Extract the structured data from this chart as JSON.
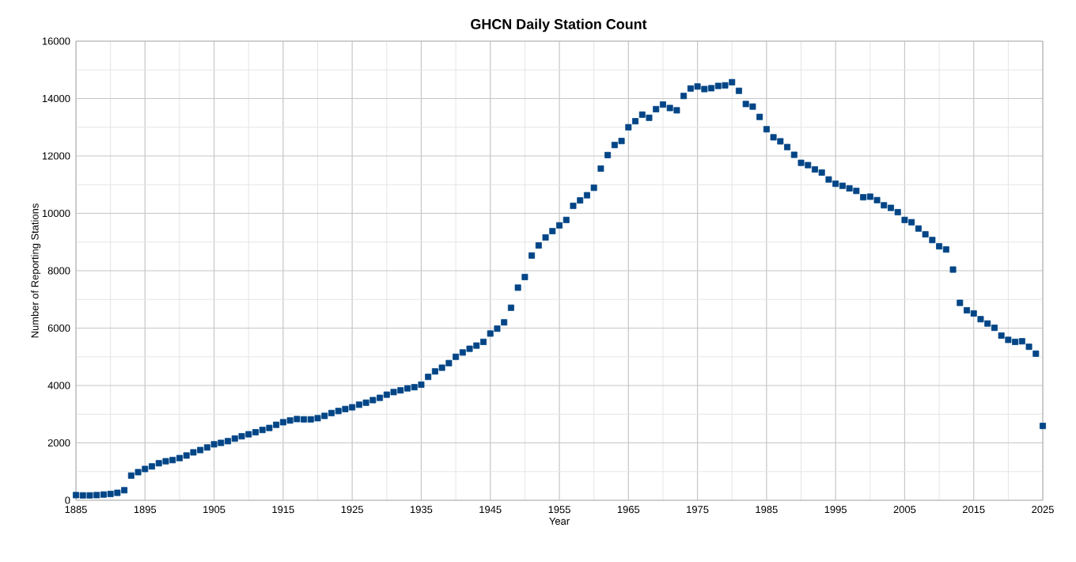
{
  "chart_data": {
    "type": "scatter",
    "title": "GHCN Daily Station Count",
    "xlabel": "Year",
    "ylabel": "Number of Reporting Stations",
    "x": [
      1885,
      1886,
      1887,
      1888,
      1889,
      1890,
      1891,
      1892,
      1893,
      1894,
      1895,
      1896,
      1897,
      1898,
      1899,
      1900,
      1901,
      1902,
      1903,
      1904,
      1905,
      1906,
      1907,
      1908,
      1909,
      1910,
      1911,
      1912,
      1913,
      1914,
      1915,
      1916,
      1917,
      1918,
      1919,
      1920,
      1921,
      1922,
      1923,
      1924,
      1925,
      1926,
      1927,
      1928,
      1929,
      1930,
      1931,
      1932,
      1933,
      1934,
      1935,
      1936,
      1937,
      1938,
      1939,
      1940,
      1941,
      1942,
      1943,
      1944,
      1945,
      1946,
      1947,
      1948,
      1949,
      1950,
      1951,
      1952,
      1953,
      1954,
      1955,
      1956,
      1957,
      1958,
      1959,
      1960,
      1961,
      1962,
      1963,
      1964,
      1965,
      1966,
      1967,
      1968,
      1969,
      1970,
      1971,
      1972,
      1973,
      1974,
      1975,
      1976,
      1977,
      1978,
      1979,
      1980,
      1981,
      1982,
      1983,
      1984,
      1985,
      1986,
      1987,
      1988,
      1989,
      1990,
      1991,
      1992,
      1993,
      1994,
      1995,
      1996,
      1997,
      1998,
      1999,
      2000,
      2001,
      2002,
      2003,
      2004,
      2005,
      2006,
      2007,
      2008,
      2009,
      2010,
      2011,
      2012,
      2013,
      2014,
      2015,
      2016,
      2017,
      2018,
      2019,
      2020,
      2021,
      2022,
      2023,
      2024,
      2025
    ],
    "series": [
      {
        "color": "#004586",
        "values": [
          180,
          170,
          170,
          180,
          200,
          220,
          260,
          350,
          860,
          980,
          1090,
          1180,
          1290,
          1360,
          1400,
          1470,
          1560,
          1670,
          1750,
          1840,
          1950,
          2000,
          2060,
          2150,
          2230,
          2300,
          2370,
          2450,
          2520,
          2630,
          2720,
          2780,
          2830,
          2820,
          2820,
          2860,
          2940,
          3040,
          3110,
          3180,
          3240,
          3330,
          3400,
          3490,
          3570,
          3680,
          3770,
          3830,
          3900,
          3940,
          4030,
          4300,
          4490,
          4620,
          4780,
          5000,
          5150,
          5280,
          5390,
          5520,
          5810,
          5980,
          6200,
          6710,
          7410,
          7780,
          8530,
          8880,
          9160,
          9380,
          9580,
          9770,
          10260,
          10450,
          10630,
          10890,
          11560,
          12030,
          12380,
          12520,
          13000,
          13210,
          13440,
          13330,
          13630,
          13790,
          13670,
          13590,
          14090,
          14350,
          14420,
          14330,
          14360,
          14440,
          14460,
          14570,
          14270,
          13810,
          13720,
          13360,
          12930,
          12650,
          12510,
          12310,
          12040,
          11760,
          11680,
          11530,
          11420,
          11180,
          11030,
          10960,
          10870,
          10780,
          10560,
          10580,
          10460,
          10280,
          10190,
          10040,
          9770,
          9690,
          9470,
          9270,
          9070,
          8850,
          8740,
          8040,
          6880,
          6620,
          6510,
          6310,
          6160,
          6010,
          5740,
          5590,
          5520,
          5540,
          5350,
          5110,
          2590
        ]
      }
    ],
    "xlim": [
      1885,
      2025
    ],
    "ylim": [
      0,
      16000
    ],
    "xticks": [
      1885,
      1895,
      1905,
      1915,
      1925,
      1935,
      1945,
      1955,
      1965,
      1975,
      1985,
      1995,
      2005,
      2015,
      2025
    ],
    "yticks": [
      0,
      2000,
      4000,
      6000,
      8000,
      10000,
      12000,
      14000,
      16000
    ],
    "grid": true,
    "marker": "square"
  }
}
